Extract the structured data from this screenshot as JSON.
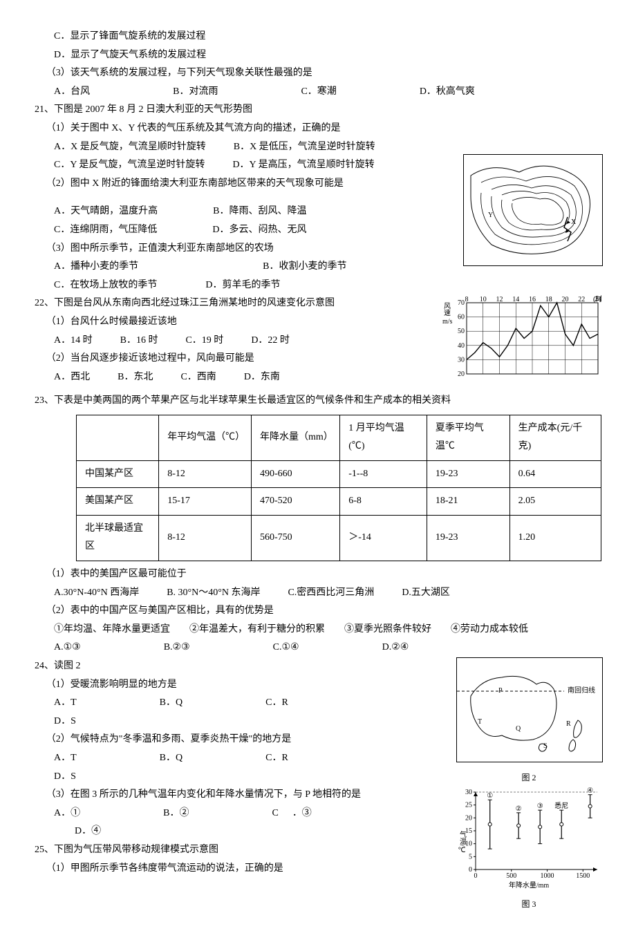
{
  "pre": {
    "optC": "C．显示了锋面气旋系统的发展过程",
    "optD": "D．显示了气旋天气系统的发展过程",
    "sub3": "（3）该天气系统的发展过程，与下列天气现象关联性最强的是",
    "s3A": "A．台风",
    "s3B": "B．对流雨",
    "s3C": "C．寒潮",
    "s3D": "D．秋高气爽"
  },
  "q21": {
    "stem": "21、下图是 2007 年 8 月 2 日澳大利亚的天气形势图",
    "sub1": "（1）关于图中 X、Y 代表的气压系统及其气流方向的描述，正确的是",
    "s1A": "A．X 是反气旋，气流呈顺时针旋转",
    "s1B": "B．X 是低压，气流呈逆时针旋转",
    "s1C": "C．Y 是反气旋，气流呈逆时针旋转",
    "s1D": "D．Y 是高压，气流呈顺时针旋转",
    "sub2": "（2）图中 X 附近的锋面给澳大利亚东南部地区带来的天气现象可能是",
    "s2A": "A．天气晴朗，温度升高",
    "s2B": "B．降雨、刮风、降温",
    "s2C": "C．连绵阴雨，气压降低",
    "s2D": "D．多云、闷热、无风",
    "sub3": "（3）图中所示季节，正值澳大利亚东南部地区的农场",
    "s3A": "A．播种小麦的季节",
    "s3B": "B．收割小麦的季节",
    "s3C": "C．在牧场上放牧的季节",
    "s3D": "D．剪羊毛的季节"
  },
  "q22": {
    "stem": "22、下图是台风从东南向西北经过珠江三角洲某地时的风速变化示意图",
    "sub1": "（1）台风什么时候最接近该地",
    "s1A": "A．14 时",
    "s1B": "B．16 时",
    "s1C": "C．19 时",
    "s1D": "D．22 时",
    "sub2": "（2）当台风逐步接近该地过程中，风向最可能是",
    "s2A": "A．西北",
    "s2B": "B．东北",
    "s2C": "C．西南",
    "s2D": "D．东南",
    "chart": {
      "type": "line",
      "x_ticks": [
        8,
        10,
        12,
        14,
        16,
        18,
        20,
        22,
        24
      ],
      "x_unit": "(时)",
      "y_label": "风速 m/s",
      "y_ticks": [
        20,
        30,
        40,
        50,
        60,
        70
      ],
      "series": [
        [
          8,
          30
        ],
        [
          9,
          35
        ],
        [
          10,
          42
        ],
        [
          11,
          38
        ],
        [
          12,
          32
        ],
        [
          13,
          40
        ],
        [
          14,
          52
        ],
        [
          15,
          45
        ],
        [
          16,
          50
        ],
        [
          17,
          68
        ],
        [
          18,
          60
        ],
        [
          19,
          70
        ],
        [
          20,
          48
        ],
        [
          21,
          40
        ],
        [
          22,
          55
        ],
        [
          23,
          45
        ],
        [
          24,
          48
        ]
      ],
      "grid_color": "#000",
      "line_color": "#000",
      "bg": "#fff"
    }
  },
  "q23": {
    "stem": "23、下表是中美两国的两个苹果产区与北半球苹果生长最适宜区的气候条件和生产成本的相关资料",
    "headers": [
      "",
      "年平均气温（℃）",
      "年降水量（mm）",
      "1 月平均气温(℃)",
      "夏季平均气温℃",
      "生产成本(元/千克)"
    ],
    "rows": [
      [
        "中国某产区",
        "8-12",
        "490-660",
        "-1--8",
        "19-23",
        "0.64"
      ],
      [
        "美国某产区",
        "15-17",
        "470-520",
        "6-8",
        "18-21",
        "2.05"
      ],
      [
        "北半球最适宜区",
        "8-12",
        "560-750",
        "＞-14",
        "19-23",
        "1.20"
      ]
    ],
    "sub1": "（1）表中的美国产区最可能位于",
    "s1A": "A.30°N-40°N 西海岸",
    "s1B": "B. 30°N～40°N 东海岸",
    "s1C": "C.密西西比河三角洲",
    "s1D": "D.五大湖区",
    "sub2": "（2）表中的中国产区与美国产区相比，具有的优势是",
    "stmts": "①年均温、年降水量更适宜　　②年温差大，有利于糖分的积累　　③夏季光照条件较好　　④劳动力成本较低",
    "s2A": "A.①③",
    "s2B": "B.②③",
    "s2C": "C.①④",
    "s2D": "D.②④"
  },
  "q24": {
    "stem": "24、读图 2",
    "sub1": "（1）受暖流影响明显的地方是",
    "s1A": "A．T",
    "s1B": "B．Q",
    "s1C": "C．R",
    "s1D": "D．S",
    "sub2": "（2）气候特点为\"冬季温和多雨、夏季炎热干燥\"的地方是",
    "s2A": "A．T",
    "s2B": "B．Q",
    "s2C": "C．R",
    "s2D": "D．S",
    "sub3": "（3）在图 3 所示的几种气温年内变化和年降水量情况下，与 P 地相符的是",
    "s3A": "A．①",
    "s3B": "B．②",
    "s3C": "C．③",
    "s3D": "D．④",
    "fig2_caption": "图 2",
    "fig2_label_tropic": "南回归线",
    "fig3_caption": "图 3",
    "fig3": {
      "x_label": "年降水量/mm",
      "y_label": "气温/℃",
      "x_ticks": [
        0,
        500,
        1000,
        1500
      ],
      "y_ticks": [
        0,
        5,
        10,
        15,
        20,
        25,
        30
      ],
      "markers": [
        "①",
        "②",
        "③",
        "④",
        "悉尼"
      ],
      "points": [
        {
          "label": "①",
          "x": 200,
          "ylow": 8,
          "yhigh": 27
        },
        {
          "label": "②",
          "x": 600,
          "ylow": 12,
          "yhigh": 22
        },
        {
          "label": "③",
          "x": 900,
          "ylow": 10,
          "yhigh": 23
        },
        {
          "label": "悉尼",
          "x": 1200,
          "ylow": 12,
          "yhigh": 23
        },
        {
          "label": "④",
          "x": 1600,
          "ylow": 20,
          "yhigh": 29
        }
      ]
    }
  },
  "q25": {
    "stem": "25、下图为气压带风带移动规律模式示意图",
    "sub1": "（1）甲图所示季节各纬度带气流运动的说法，正确的是"
  }
}
